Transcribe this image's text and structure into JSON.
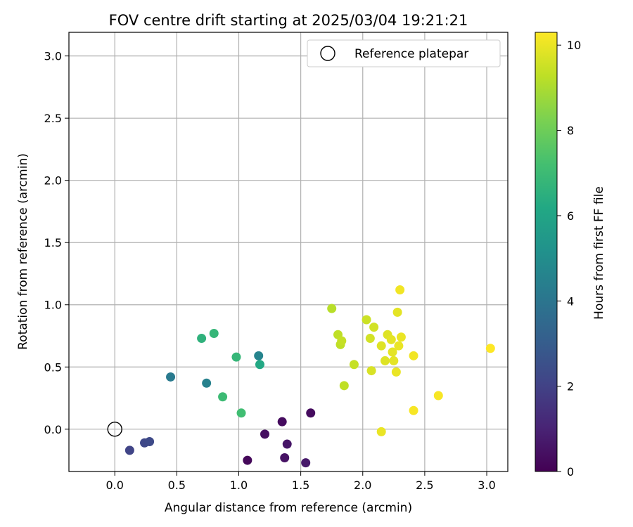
{
  "chart_data": {
    "type": "scatter",
    "title": "FOV centre drift starting at 2025/03/04 19:21:21",
    "xlabel": "Angular distance from reference (arcmin)",
    "ylabel": "Rotation from reference (arcmin)",
    "xlim": [
      -0.37,
      3.17
    ],
    "ylim": [
      -0.34,
      3.19
    ],
    "xticks": [
      "0.0",
      "0.5",
      "1.0",
      "1.5",
      "2.0",
      "2.5",
      "3.0"
    ],
    "yticks": [
      "0.0",
      "0.5",
      "1.0",
      "1.5",
      "2.0",
      "2.5",
      "3.0"
    ],
    "grid": true,
    "legend": {
      "position": "top-right",
      "entries": [
        "Reference platepar"
      ]
    },
    "colorbar": {
      "label": "Hours from first FF file",
      "colormap": "viridis",
      "range": [
        0,
        10.3
      ],
      "ticks": [
        "0",
        "2",
        "4",
        "6",
        "8",
        "10"
      ]
    },
    "reference_point": {
      "x": 0.0,
      "y": 0.0,
      "name": "Reference platepar"
    },
    "points": [
      {
        "x": 1.07,
        "y": -0.25,
        "h": 0.2
      },
      {
        "x": 1.21,
        "y": -0.04,
        "h": 0.4
      },
      {
        "x": 1.35,
        "y": 0.06,
        "h": 0.3
      },
      {
        "x": 1.37,
        "y": -0.23,
        "h": 0.5
      },
      {
        "x": 1.39,
        "y": -0.12,
        "h": 0.6
      },
      {
        "x": 1.54,
        "y": -0.27,
        "h": 0.7
      },
      {
        "x": 1.58,
        "y": 0.13,
        "h": 0.3
      },
      {
        "x": 0.12,
        "y": -0.17,
        "h": 2.1
      },
      {
        "x": 0.24,
        "y": -0.11,
        "h": 2.2
      },
      {
        "x": 0.28,
        "y": -0.1,
        "h": 2.3
      },
      {
        "x": 0.45,
        "y": 0.42,
        "h": 4.2
      },
      {
        "x": 0.74,
        "y": 0.37,
        "h": 4.5
      },
      {
        "x": 1.16,
        "y": 0.59,
        "h": 4.6
      },
      {
        "x": 0.7,
        "y": 0.73,
        "h": 6.6
      },
      {
        "x": 0.8,
        "y": 0.77,
        "h": 6.8
      },
      {
        "x": 0.87,
        "y": 0.26,
        "h": 7.0
      },
      {
        "x": 0.98,
        "y": 0.58,
        "h": 6.8
      },
      {
        "x": 1.02,
        "y": 0.13,
        "h": 7.1
      },
      {
        "x": 1.17,
        "y": 0.52,
        "h": 6.2
      },
      {
        "x": 1.75,
        "y": 0.97,
        "h": 9.2
      },
      {
        "x": 1.8,
        "y": 0.76,
        "h": 9.3
      },
      {
        "x": 1.82,
        "y": 0.68,
        "h": 9.3
      },
      {
        "x": 1.83,
        "y": 0.71,
        "h": 9.4
      },
      {
        "x": 1.85,
        "y": 0.35,
        "h": 9.3
      },
      {
        "x": 1.93,
        "y": 0.52,
        "h": 9.4
      },
      {
        "x": 2.03,
        "y": 0.88,
        "h": 9.5
      },
      {
        "x": 2.06,
        "y": 0.73,
        "h": 9.6
      },
      {
        "x": 2.07,
        "y": 0.47,
        "h": 9.7
      },
      {
        "x": 2.09,
        "y": 0.82,
        "h": 9.6
      },
      {
        "x": 2.15,
        "y": 0.67,
        "h": 9.8
      },
      {
        "x": 2.15,
        "y": -0.02,
        "h": 10.0
      },
      {
        "x": 2.18,
        "y": 0.55,
        "h": 9.8
      },
      {
        "x": 2.2,
        "y": 0.76,
        "h": 9.8
      },
      {
        "x": 2.23,
        "y": 0.72,
        "h": 9.9
      },
      {
        "x": 2.24,
        "y": 0.62,
        "h": 9.9
      },
      {
        "x": 2.25,
        "y": 0.55,
        "h": 9.9
      },
      {
        "x": 2.27,
        "y": 0.46,
        "h": 10.0
      },
      {
        "x": 2.28,
        "y": 0.94,
        "h": 9.9
      },
      {
        "x": 2.29,
        "y": 0.67,
        "h": 10.0
      },
      {
        "x": 2.3,
        "y": 1.12,
        "h": 10.1
      },
      {
        "x": 2.31,
        "y": 0.74,
        "h": 10.0
      },
      {
        "x": 2.41,
        "y": 0.59,
        "h": 10.1
      },
      {
        "x": 2.41,
        "y": 0.15,
        "h": 10.2
      },
      {
        "x": 2.61,
        "y": 0.27,
        "h": 10.2
      },
      {
        "x": 3.03,
        "y": 0.65,
        "h": 10.3
      }
    ]
  }
}
